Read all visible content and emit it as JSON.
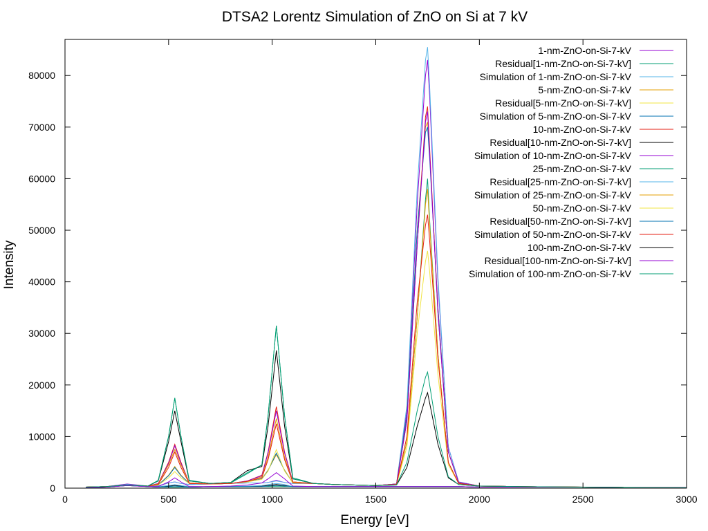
{
  "chart_data": {
    "type": "line",
    "title": "DTSA2 Lorentz Simulation of ZnO on Si at 7 kV",
    "xlabel": "Energy [eV]",
    "ylabel": "Intensity",
    "xlim": [
      0,
      3000
    ],
    "ylim": [
      0,
      87000
    ],
    "x_ticks": [
      0,
      500,
      1000,
      1500,
      2000,
      2500,
      3000
    ],
    "y_ticks": [
      0,
      10000,
      20000,
      30000,
      40000,
      50000,
      60000,
      70000,
      80000
    ],
    "grid": false,
    "legend_position": "top-right",
    "x": [
      100,
      200,
      300,
      400,
      450,
      500,
      530,
      560,
      600,
      700,
      800,
      880,
      950,
      980,
      1020,
      1060,
      1100,
      1200,
      1300,
      1400,
      1500,
      1600,
      1650,
      1700,
      1740,
      1750,
      1760,
      1800,
      1850,
      1900,
      2000,
      2200,
      2500,
      2800,
      3000
    ],
    "series": [
      {
        "name": "1-nm-ZnO-on-Si-7-kV",
        "color": "#9400d3",
        "values": [
          200,
          300,
          800,
          400,
          450,
          1000,
          1200,
          900,
          700,
          800,
          900,
          1000,
          1000,
          1100,
          1500,
          1100,
          900,
          900,
          700,
          600,
          500,
          800,
          15000,
          55000,
          80000,
          83000,
          76000,
          40000,
          8000,
          1200,
          400,
          300,
          200,
          100,
          80
        ]
      },
      {
        "name": "Residual[1-nm-ZnO-on-Si-7-kV]",
        "color": "#009e73",
        "values": [
          100,
          200,
          600,
          300,
          200,
          200,
          200,
          200,
          200,
          300,
          300,
          300,
          300,
          300,
          300,
          300,
          300,
          300,
          300,
          300,
          300,
          300,
          300,
          300,
          300,
          300,
          300,
          300,
          300,
          300,
          200,
          200,
          200,
          100,
          100
        ]
      },
      {
        "name": "Simulation of 1-nm-ZnO-on-Si-7-kV",
        "color": "#56b4e9",
        "values": [
          200,
          300,
          700,
          400,
          450,
          1000,
          1200,
          900,
          700,
          800,
          900,
          1000,
          1000,
          1100,
          1400,
          1100,
          900,
          900,
          700,
          600,
          500,
          800,
          16000,
          58000,
          83000,
          85500,
          78000,
          41000,
          8000,
          1200,
          400,
          300,
          200,
          100,
          80
        ]
      },
      {
        "name": "5-nm-ZnO-on-Si-7-kV",
        "color": "#e69f00",
        "values": [
          200,
          300,
          600,
          400,
          600,
          2500,
          4200,
          2500,
          900,
          800,
          900,
          1200,
          1800,
          3500,
          6500,
          3500,
          1000,
          900,
          700,
          600,
          500,
          800,
          14000,
          50000,
          70000,
          71000,
          65000,
          35000,
          7000,
          1100,
          400,
          300,
          200,
          100,
          80
        ]
      },
      {
        "name": "Residual[5-nm-ZnO-on-Si-7-kV]",
        "color": "#f0e442",
        "values": [
          100,
          200,
          500,
          300,
          200,
          300,
          400,
          300,
          200,
          300,
          300,
          300,
          300,
          400,
          500,
          400,
          300,
          300,
          300,
          300,
          300,
          300,
          300,
          300,
          300,
          300,
          300,
          300,
          300,
          300,
          200,
          200,
          200,
          100,
          100
        ]
      },
      {
        "name": "Simulation of 5-nm-ZnO-on-Si-7-kV",
        "color": "#0072b2",
        "values": [
          200,
          300,
          600,
          400,
          600,
          2400,
          4000,
          2400,
          900,
          800,
          900,
          1200,
          1800,
          3400,
          6800,
          3400,
          1000,
          900,
          700,
          600,
          500,
          800,
          14000,
          50000,
          69000,
          70000,
          64000,
          35000,
          7000,
          1100,
          400,
          300,
          200,
          100,
          80
        ]
      },
      {
        "name": "10-nm-ZnO-on-Si-7-kV",
        "color": "#e51e10",
        "values": [
          200,
          300,
          600,
          400,
          900,
          5000,
          8500,
          5000,
          1000,
          800,
          900,
          1400,
          2500,
          7000,
          15800,
          7000,
          1200,
          900,
          700,
          600,
          500,
          800,
          13000,
          47000,
          72000,
          74000,
          66000,
          34000,
          7000,
          1100,
          400,
          300,
          200,
          100,
          80
        ]
      },
      {
        "name": "Residual[10-nm-ZnO-on-Si-7-kV]",
        "color": "#000000",
        "values": [
          100,
          200,
          500,
          300,
          200,
          400,
          500,
          400,
          200,
          300,
          300,
          300,
          400,
          500,
          700,
          500,
          300,
          300,
          300,
          300,
          300,
          300,
          300,
          300,
          300,
          300,
          300,
          300,
          300,
          300,
          200,
          200,
          200,
          100,
          100
        ]
      },
      {
        "name": "Simulation of 10-nm-ZnO-on-Si-7-kV",
        "color": "#9400d3",
        "values": [
          200,
          300,
          600,
          400,
          900,
          4800,
          8200,
          4800,
          1000,
          800,
          900,
          1400,
          2400,
          6800,
          15000,
          6800,
          1200,
          900,
          700,
          600,
          500,
          800,
          13000,
          47000,
          71000,
          73000,
          65000,
          34000,
          7000,
          1100,
          400,
          300,
          200,
          100,
          80
        ]
      },
      {
        "name": "25-nm-ZnO-on-Si-7-kV",
        "color": "#009e73",
        "values": [
          200,
          300,
          600,
          400,
          1500,
          10000,
          17500,
          10000,
          1500,
          900,
          1000,
          2800,
          4500,
          14000,
          31500,
          14000,
          2000,
          900,
          700,
          600,
          500,
          700,
          9000,
          33000,
          56000,
          60000,
          52000,
          26000,
          5000,
          900,
          400,
          300,
          200,
          100,
          80
        ]
      },
      {
        "name": "Residual[25-nm-ZnO-on-Si-7-kV]",
        "color": "#56b4e9",
        "values": [
          100,
          200,
          500,
          300,
          300,
          500,
          700,
          500,
          300,
          300,
          300,
          400,
          500,
          700,
          900,
          700,
          300,
          300,
          300,
          300,
          300,
          300,
          300,
          300,
          300,
          300,
          300,
          300,
          300,
          300,
          200,
          200,
          200,
          100,
          100
        ]
      },
      {
        "name": "Simulation of 25-nm-ZnO-on-Si-7-kV",
        "color": "#e69f00",
        "values": [
          200,
          300,
          600,
          400,
          800,
          4500,
          7500,
          4500,
          1000,
          800,
          900,
          1300,
          2200,
          6000,
          13500,
          6000,
          1200,
          900,
          700,
          600,
          500,
          700,
          9000,
          33000,
          55000,
          58000,
          51000,
          26000,
          5000,
          900,
          400,
          300,
          200,
          100,
          80
        ]
      },
      {
        "name": "50-nm-ZnO-on-Si-7-kV",
        "color": "#f0e442",
        "values": [
          200,
          300,
          600,
          400,
          600,
          2000,
          3200,
          2000,
          900,
          800,
          900,
          1200,
          1700,
          3300,
          7500,
          3300,
          1000,
          900,
          700,
          600,
          500,
          700,
          8000,
          30000,
          44000,
          46000,
          42000,
          22000,
          4500,
          900,
          400,
          300,
          200,
          100,
          80
        ]
      },
      {
        "name": "Residual[50-nm-ZnO-on-Si-7-kV]",
        "color": "#0072b2",
        "values": [
          100,
          200,
          500,
          300,
          200,
          300,
          400,
          300,
          200,
          300,
          300,
          300,
          300,
          400,
          500,
          400,
          300,
          300,
          300,
          300,
          300,
          300,
          300,
          300,
          300,
          300,
          300,
          300,
          300,
          300,
          200,
          200,
          200,
          100,
          100
        ]
      },
      {
        "name": "Simulation of 50-nm-ZnO-on-Si-7-kV",
        "color": "#e51e10",
        "values": [
          200,
          300,
          600,
          400,
          700,
          4000,
          7000,
          4000,
          900,
          800,
          900,
          1300,
          2000,
          5500,
          12500,
          5500,
          1100,
          900,
          700,
          600,
          500,
          700,
          10000,
          36000,
          51000,
          53000,
          48000,
          25000,
          5000,
          900,
          400,
          300,
          200,
          100,
          80
        ]
      },
      {
        "name": "100-nm-ZnO-on-Si-7-kV",
        "color": "#000000",
        "values": [
          200,
          300,
          600,
          400,
          1400,
          9000,
          15000,
          9000,
          1400,
          900,
          1100,
          3400,
          4200,
          12000,
          26700,
          12000,
          1800,
          900,
          700,
          600,
          500,
          600,
          4000,
          12000,
          17500,
          18500,
          16500,
          8500,
          2000,
          700,
          400,
          300,
          200,
          100,
          80
        ]
      },
      {
        "name": "Residual[100-nm-ZnO-on-Si-7-kV]",
        "color": "#9400d3",
        "values": [
          100,
          200,
          500,
          300,
          300,
          1200,
          2000,
          1200,
          300,
          300,
          400,
          600,
          1000,
          1800,
          3000,
          1800,
          400,
          300,
          300,
          300,
          300,
          300,
          300,
          300,
          300,
          300,
          300,
          300,
          300,
          300,
          200,
          200,
          200,
          100,
          100
        ]
      },
      {
        "name": "Simulation of 100-nm-ZnO-on-Si-7-kV",
        "color": "#009e73",
        "values": [
          200,
          300,
          600,
          400,
          1400,
          10000,
          17400,
          10000,
          1400,
          900,
          1100,
          3000,
          4500,
          14000,
          31500,
          14000,
          1800,
          900,
          700,
          600,
          500,
          600,
          5000,
          15000,
          21500,
          22500,
          20000,
          10000,
          2200,
          700,
          400,
          300,
          200,
          100,
          80
        ]
      }
    ]
  }
}
